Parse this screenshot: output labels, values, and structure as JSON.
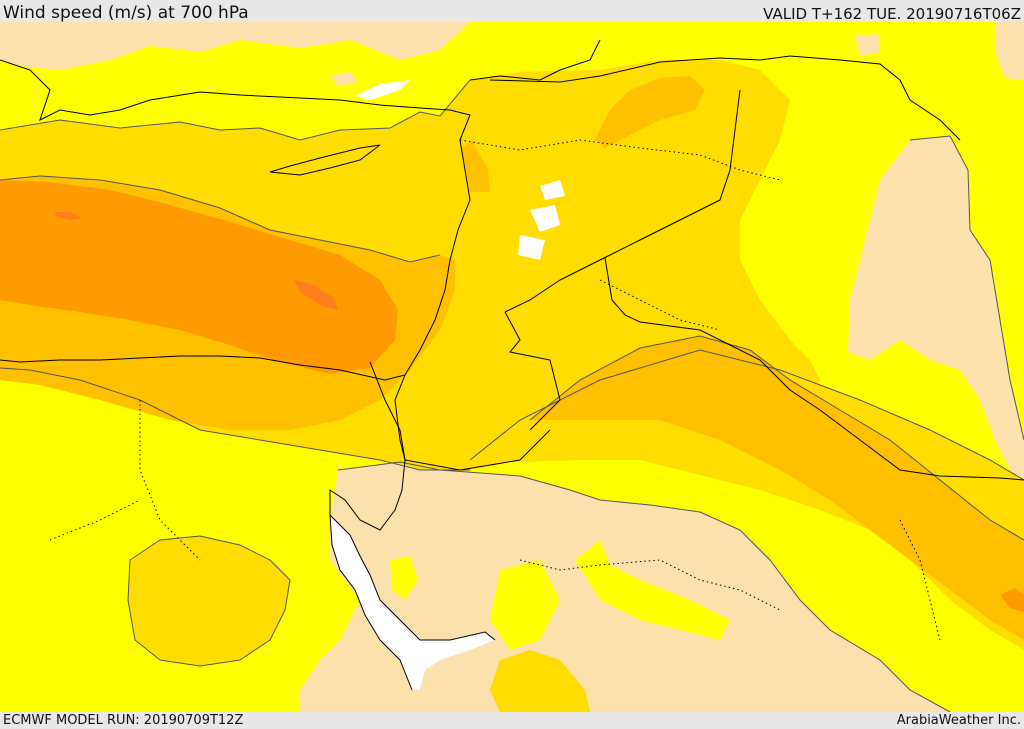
{
  "header": {
    "title": "Wind speed (m/s) at 700 hPa",
    "valid_time": "VALID T+162 TUE. 20190716T06Z"
  },
  "footer": {
    "model_run": "ECMWF MODEL RUN: 20190709T12Z",
    "credit": "ArabiaWeather Inc."
  },
  "map": {
    "field": "wind speed at 700 hPa",
    "legend_shown": false,
    "colors": {
      "below_lowest_band": "#ffffff",
      "band_1": "#fde1ac",
      "band_2": "#ffff00",
      "band_3": "#ffdd00",
      "band_4": "#ffc000",
      "band_5": "#ff9a00",
      "band_6": "#ff7e20",
      "contour_line": "#555555",
      "coastline": "#000000",
      "border_line": "#000000"
    }
  }
}
